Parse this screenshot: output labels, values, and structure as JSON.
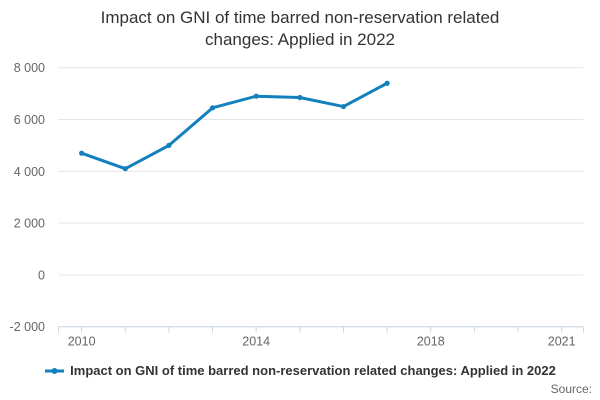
{
  "chart_data": {
    "type": "line",
    "title": "Impact on GNI of time barred non-reservation related\nchanges: Applied in 2022",
    "x": [
      2010,
      2011,
      2012,
      2013,
      2014,
      2015,
      2016,
      2017
    ],
    "series": [
      {
        "name": "Impact on GNI of time barred non-reservation related changes: Applied in 2022",
        "color": "#1380be",
        "values": [
          4700,
          4100,
          5000,
          6450,
          6900,
          6850,
          6500,
          7400
        ]
      }
    ],
    "xlabel": "",
    "ylabel": "",
    "x_axis": {
      "range": [
        2009.47,
        2021.5
      ],
      "tick_years": [
        2010,
        2011,
        2012,
        2013,
        2014,
        2015,
        2016,
        2017,
        2018,
        2019,
        2020,
        2021
      ],
      "labels": [
        {
          "value": 2010,
          "text": "2010"
        },
        {
          "value": 2014,
          "text": "2014"
        },
        {
          "value": 2018,
          "text": "2018"
        },
        {
          "value": 2021,
          "text": "2021"
        }
      ]
    },
    "y_axis": {
      "range": [
        -2000,
        8000
      ],
      "ticks": [
        {
          "value": 8000,
          "label": "8 000"
        },
        {
          "value": 6000,
          "label": "6 000"
        },
        {
          "value": 4000,
          "label": "4 000"
        },
        {
          "value": 2000,
          "label": "2 000"
        },
        {
          "value": 0,
          "label": "0"
        },
        {
          "value": -2000,
          "label": "-2 000"
        }
      ]
    },
    "grid": "horizontal",
    "legend_position": "bottom",
    "source_label": "Source:",
    "colors": {
      "series": "#1380be",
      "gridline": "#e6e6e6",
      "axis_line": "#ccd6eb",
      "axis_label": "#666666",
      "title": "#333333",
      "legend_text": "#333333",
      "source_text": "#666666"
    }
  }
}
